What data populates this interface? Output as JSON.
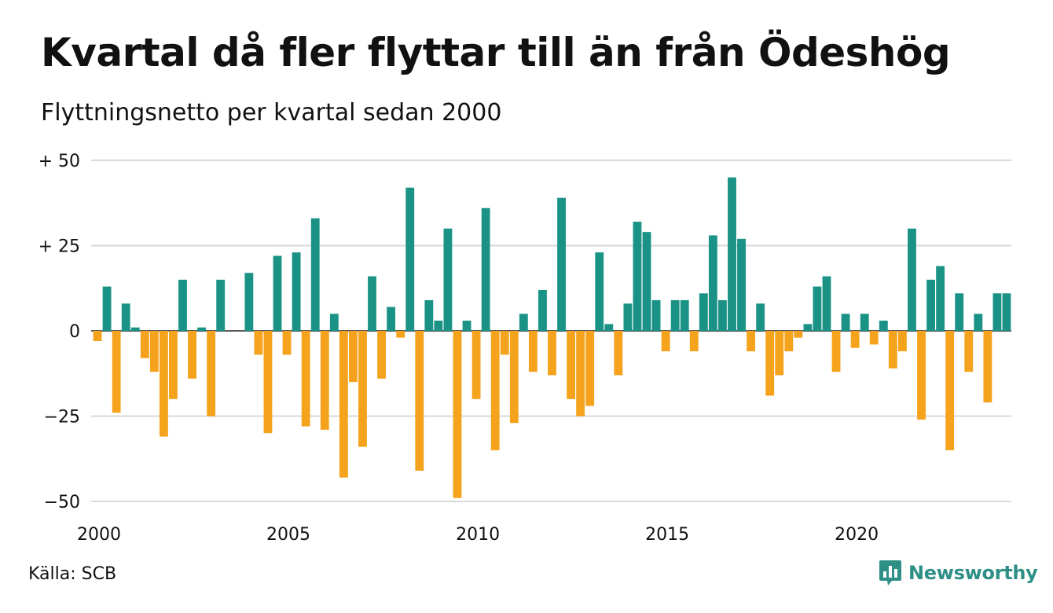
{
  "title": "Kvartal då fler flyttar till än från Ödeshög",
  "subtitle": "Flyttningsnetto per kvartal sedan 2000",
  "source": "Källa: SCB",
  "brand": {
    "name": "Newsworthy",
    "icon": "bar-chart-speech-bubble-icon"
  },
  "colors": {
    "positive": "#1a9386",
    "negative": "#f5a31d",
    "grid": "#d9d9d9",
    "zero": "#222222"
  },
  "chart_data": {
    "type": "bar",
    "title": "Kvartal då fler flyttar till än från Ödeshög",
    "subtitle": "Flyttningsnetto per kvartal sedan 2000",
    "xlabel": "",
    "ylabel": "",
    "ylim": [
      -50,
      50
    ],
    "y_ticks": [
      {
        "value": 50,
        "label": "+ 50"
      },
      {
        "value": 25,
        "label": "+ 25"
      },
      {
        "value": 0,
        "label": "0"
      },
      {
        "value": -25,
        "label": "−25"
      },
      {
        "value": -50,
        "label": "−50"
      }
    ],
    "x_ticks": [
      "2000",
      "2005",
      "2010",
      "2015",
      "2020"
    ],
    "grid": true,
    "categories": [
      "2000K1",
      "2000K2",
      "2000K3",
      "2000K4",
      "2001K1",
      "2001K2",
      "2001K3",
      "2001K4",
      "2002K1",
      "2002K2",
      "2002K3",
      "2002K4",
      "2003K1",
      "2003K2",
      "2003K3",
      "2003K4",
      "2004K1",
      "2004K2",
      "2004K3",
      "2004K4",
      "2005K1",
      "2005K2",
      "2005K3",
      "2005K4",
      "2006K1",
      "2006K2",
      "2006K3",
      "2006K4",
      "2007K1",
      "2007K2",
      "2007K3",
      "2007K4",
      "2008K1",
      "2008K2",
      "2008K3",
      "2008K4",
      "2009K1",
      "2009K2",
      "2009K3",
      "2009K4",
      "2010K1",
      "2010K2",
      "2010K3",
      "2010K4",
      "2011K1",
      "2011K2",
      "2011K3",
      "2011K4",
      "2012K1",
      "2012K2",
      "2012K3",
      "2012K4",
      "2013K1",
      "2013K2",
      "2013K3",
      "2013K4",
      "2014K1",
      "2014K2",
      "2014K3",
      "2014K4",
      "2015K1",
      "2015K2",
      "2015K3",
      "2015K4",
      "2016K1",
      "2016K2",
      "2016K3",
      "2016K4",
      "2017K1",
      "2017K2",
      "2017K3",
      "2017K4",
      "2018K1",
      "2018K2",
      "2018K3",
      "2018K4",
      "2019K1",
      "2019K2",
      "2019K3",
      "2019K4",
      "2020K1",
      "2020K2",
      "2020K3",
      "2020K4",
      "2021K1",
      "2021K2",
      "2021K3",
      "2021K4",
      "2022K1",
      "2022K2",
      "2022K3",
      "2022K4",
      "2023K1",
      "2023K2",
      "2023K3",
      "2023K4",
      "2024K1"
    ],
    "values": [
      -3,
      13,
      -24,
      8,
      1,
      -8,
      -12,
      -31,
      -20,
      15,
      -14,
      1,
      -25,
      15,
      0,
      0,
      17,
      -7,
      -30,
      22,
      -7,
      23,
      -28,
      33,
      -29,
      5,
      -43,
      -15,
      -34,
      16,
      -14,
      7,
      -2,
      42,
      -41,
      9,
      3,
      30,
      -49,
      3,
      -20,
      36,
      -35,
      -7,
      -27,
      5,
      -12,
      12,
      -13,
      39,
      -20,
      -25,
      -22,
      23,
      2,
      -13,
      8,
      32,
      29,
      9,
      -6,
      9,
      9,
      -6,
      11,
      28,
      9,
      45,
      27,
      -6,
      8,
      -19,
      -13,
      -6,
      -2,
      2,
      13,
      16,
      -12,
      5,
      -5,
      5,
      -4,
      3,
      -11,
      -6,
      30,
      -26,
      15,
      19,
      -35,
      11,
      -12,
      5,
      -21,
      11,
      11
    ]
  }
}
